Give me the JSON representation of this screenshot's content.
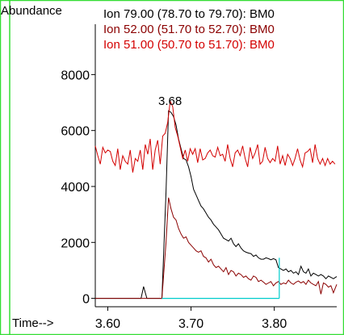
{
  "chart_data": {
    "type": "line",
    "y_axis_title": "Abundance",
    "x_axis_title": "Time-->",
    "xlim": [
      3.585,
      3.875
    ],
    "ylim": [
      -300,
      9800
    ],
    "x_ticks": [
      3.6,
      3.7,
      3.8
    ],
    "x_tick_labels": [
      "3.60",
      "3.70",
      "3.80"
    ],
    "y_ticks": [
      0,
      2000,
      4000,
      6000,
      8000
    ],
    "y_tick_labels": [
      "0",
      "2000",
      "4000",
      "6000",
      "8000"
    ],
    "grid": false,
    "legend_position": "top",
    "peak_label": {
      "text": "3.68",
      "x": 3.68,
      "y": 7150
    },
    "series": [
      {
        "name": "Ion  79.00 (78.70 to 79.70): BM0",
        "color": "#000000",
        "x": [
          3.585,
          3.64,
          3.643,
          3.647,
          3.665,
          3.67,
          3.673,
          3.676,
          3.679,
          3.682,
          3.685,
          3.688,
          3.691,
          3.694,
          3.697,
          3.7,
          3.703,
          3.706,
          3.709,
          3.712,
          3.715,
          3.718,
          3.721,
          3.724,
          3.727,
          3.73,
          3.733,
          3.736,
          3.739,
          3.742,
          3.745,
          3.748,
          3.751,
          3.754,
          3.757,
          3.76,
          3.763,
          3.766,
          3.769,
          3.772,
          3.775,
          3.778,
          3.781,
          3.784,
          3.787,
          3.79,
          3.793,
          3.796,
          3.799,
          3.802,
          3.805,
          3.808,
          3.811,
          3.814,
          3.817,
          3.82,
          3.823,
          3.826,
          3.829,
          3.832,
          3.835,
          3.838,
          3.841,
          3.844,
          3.847,
          3.85,
          3.853,
          3.856,
          3.859,
          3.862,
          3.865,
          3.868,
          3.871,
          3.875
        ],
        "y": [
          0,
          0,
          420,
          0,
          0,
          3800,
          6700,
          6650,
          6500,
          6200,
          5700,
          5350,
          5000,
          4950,
          4700,
          4350,
          3900,
          3700,
          3500,
          3300,
          3200,
          3050,
          2900,
          2800,
          2650,
          2550,
          2450,
          2300,
          2150,
          2100,
          2050,
          2150,
          1950,
          1850,
          1950,
          1800,
          1700,
          1650,
          1620,
          1600,
          1500,
          1550,
          1450,
          1400,
          1400,
          1450,
          1420,
          1380,
          1420,
          1380,
          1100,
          1050,
          1000,
          1050,
          950,
          1000,
          900,
          950,
          850,
          1150,
          950,
          900,
          1050,
          800,
          900,
          850,
          800,
          850,
          800,
          700,
          800,
          750,
          700,
          780
        ]
      },
      {
        "name": "Ion  52.00 (51.70 to 52.70): BM0",
        "color": "#8b0000",
        "x": [
          3.585,
          3.665,
          3.67,
          3.673,
          3.676,
          3.679,
          3.682,
          3.685,
          3.688,
          3.691,
          3.694,
          3.697,
          3.7,
          3.703,
          3.706,
          3.709,
          3.712,
          3.715,
          3.718,
          3.721,
          3.724,
          3.727,
          3.73,
          3.733,
          3.736,
          3.739,
          3.742,
          3.745,
          3.748,
          3.751,
          3.754,
          3.757,
          3.76,
          3.763,
          3.766,
          3.769,
          3.772,
          3.775,
          3.778,
          3.781,
          3.784,
          3.787,
          3.79,
          3.793,
          3.796,
          3.799,
          3.802,
          3.805,
          3.808,
          3.811,
          3.814,
          3.817,
          3.82,
          3.823,
          3.826,
          3.829,
          3.832,
          3.835,
          3.838,
          3.841,
          3.844,
          3.847,
          3.85,
          3.853,
          3.856,
          3.859,
          3.862,
          3.865,
          3.868,
          3.871,
          3.875
        ],
        "y": [
          0,
          0,
          2000,
          3600,
          3200,
          2900,
          2800,
          2500,
          2300,
          2150,
          2200,
          2000,
          1900,
          1800,
          1700,
          1650,
          1700,
          1500,
          1450,
          1300,
          1400,
          1200,
          1100,
          1150,
          1050,
          950,
          1100,
          850,
          1000,
          950,
          800,
          900,
          850,
          750,
          800,
          700,
          650,
          800,
          750,
          600,
          650,
          580,
          500,
          550,
          600,
          450,
          550,
          600,
          500,
          550,
          520,
          650,
          550,
          500,
          580,
          620,
          550,
          600,
          500,
          650,
          550,
          500,
          450,
          600,
          150,
          550,
          500,
          400,
          450,
          200,
          500
        ]
      },
      {
        "name": "Ion  51.00 (50.70 to 51.70): BM0",
        "color": "#d40000",
        "x": [
          3.585,
          3.588,
          3.591,
          3.594,
          3.597,
          3.6,
          3.603,
          3.606,
          3.609,
          3.612,
          3.615,
          3.618,
          3.621,
          3.624,
          3.627,
          3.63,
          3.633,
          3.636,
          3.639,
          3.642,
          3.645,
          3.648,
          3.651,
          3.654,
          3.657,
          3.66,
          3.663,
          3.666,
          3.669,
          3.672,
          3.675,
          3.678,
          3.681,
          3.684,
          3.687,
          3.69,
          3.693,
          3.696,
          3.699,
          3.702,
          3.705,
          3.708,
          3.711,
          3.714,
          3.717,
          3.72,
          3.723,
          3.726,
          3.729,
          3.732,
          3.735,
          3.738,
          3.741,
          3.744,
          3.747,
          3.75,
          3.753,
          3.756,
          3.759,
          3.762,
          3.765,
          3.768,
          3.771,
          3.774,
          3.777,
          3.78,
          3.783,
          3.786,
          3.789,
          3.792,
          3.795,
          3.798,
          3.801,
          3.804,
          3.807,
          3.81,
          3.813,
          3.816,
          3.819,
          3.822,
          3.825,
          3.828,
          3.831,
          3.834,
          3.837,
          3.84,
          3.843,
          3.846,
          3.849,
          3.852,
          3.855,
          3.858,
          3.861,
          3.864,
          3.867,
          3.87,
          3.873
        ],
        "y": [
          5450,
          5100,
          4800,
          5400,
          5200,
          5300,
          5250,
          4900,
          4750,
          5350,
          4600,
          5100,
          4900,
          4800,
          5300,
          4500,
          5000,
          4900,
          5300,
          4600,
          5500,
          5150,
          5700,
          4600,
          5300,
          5650,
          4800,
          5800,
          5900,
          6300,
          7050,
          6850,
          6100,
          5800,
          5400,
          5000,
          5300,
          4900,
          5350,
          5150,
          5350,
          4850,
          5350,
          4950,
          5000,
          5200,
          5300,
          5100,
          5050,
          5400,
          5100,
          5150,
          4900,
          5500,
          5000,
          4700,
          5200,
          5300,
          5100,
          5450,
          5000,
          4700,
          5400,
          5000,
          5200,
          5500,
          4800,
          4900,
          5400,
          5000,
          4850,
          5000,
          4900,
          5450,
          4800,
          5100,
          4750,
          5150,
          5000,
          4750,
          5000,
          5350,
          4950,
          4700,
          5200,
          5250,
          5350,
          4850,
          5500,
          5000,
          4800,
          5000,
          4750,
          5000,
          4800,
          4900,
          4800
        ]
      }
    ],
    "baseline": {
      "color": "#00cccc",
      "x": [
        3.665,
        3.806
      ],
      "y": [
        0,
        0
      ],
      "end_marker_x": 3.806,
      "end_marker_top": 1450
    }
  }
}
